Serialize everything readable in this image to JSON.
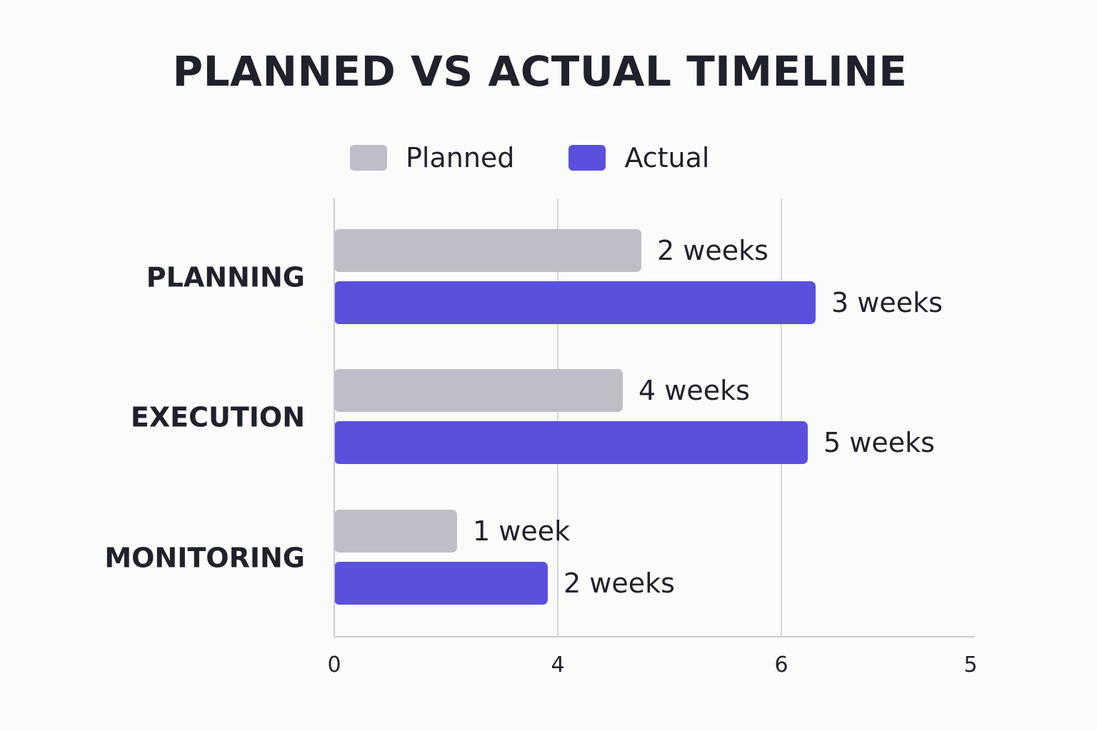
{
  "chart_data": {
    "type": "bar",
    "orientation": "horizontal",
    "title": "PLANNED VS ACTUAL TIMELINE",
    "categories": [
      "PLANNING",
      "EXECUTION",
      "MONITORING"
    ],
    "series": [
      {
        "name": "Planned",
        "color": "#bebec6",
        "values": [
          2,
          4,
          1
        ],
        "labels": [
          "2 weeks",
          "4 weeks",
          "1 week"
        ]
      },
      {
        "name": "Actual",
        "color": "#5b50de",
        "values": [
          3,
          5,
          2
        ],
        "labels": [
          "3 weeks",
          "5 weeks",
          "2 weeks"
        ]
      }
    ],
    "x_tick_labels": [
      "0",
      "4",
      "6",
      "5"
    ],
    "xlabel": "",
    "ylabel": "",
    "grid": true,
    "legend_position": "top-center",
    "axis_color": "#c9c9cf"
  }
}
